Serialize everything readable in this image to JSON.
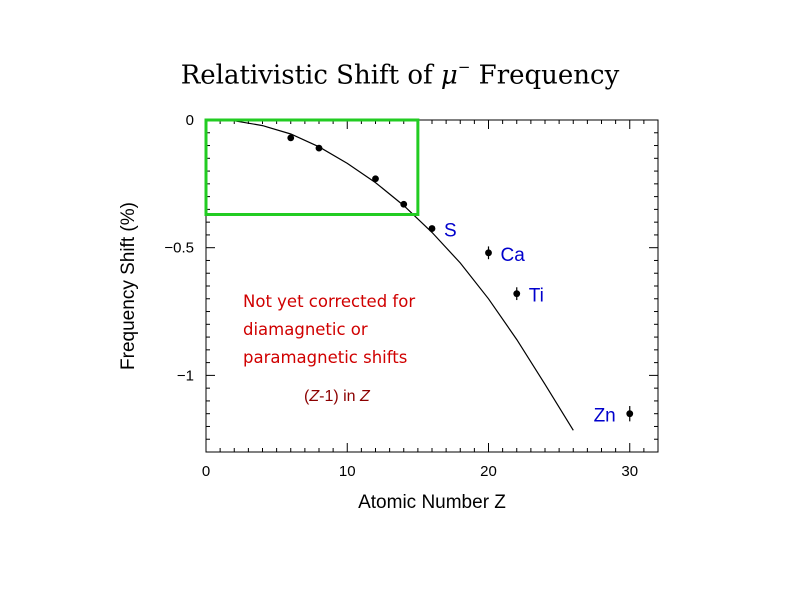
{
  "title": {
    "prefix": "Relativistic Shift of ",
    "symbol": "μ",
    "superscript": "−",
    "suffix": " Frequency"
  },
  "annotations": {
    "note_lines": [
      "Not yet corrected for",
      "diamagnetic or",
      "paramagnetic shifts"
    ],
    "z_note_prefix": "(",
    "z_note_z1": "Z",
    "z_note_mid": "-1) in ",
    "z_note_z2": "Z"
  },
  "colors": {
    "highlight_box": "#22cc22",
    "element_label": "#0000cc",
    "note": "#d00000",
    "z_note": "#8b0000"
  },
  "chart_data": {
    "type": "scatter",
    "xlabel": "Atomic Number Z",
    "ylabel": "Frequency Shift (%)",
    "xlim": [
      0,
      32
    ],
    "ylim": [
      -1.3,
      0
    ],
    "xticks": [
      0,
      10,
      20,
      30
    ],
    "xtick_labels": [
      "0",
      "10",
      "20",
      "30"
    ],
    "yticks": [
      0,
      -0.5,
      -1
    ],
    "ytick_labels": [
      "0",
      "−0.5",
      "−1"
    ],
    "grid": false,
    "points": [
      {
        "x": 6,
        "y": -0.07,
        "err": 0,
        "label": ""
      },
      {
        "x": 8,
        "y": -0.11,
        "err": 0,
        "label": ""
      },
      {
        "x": 12,
        "y": -0.23,
        "err": 0,
        "label": ""
      },
      {
        "x": 14,
        "y": -0.33,
        "err": 0,
        "label": ""
      },
      {
        "x": 16,
        "y": -0.425,
        "err": 0,
        "label": "S"
      },
      {
        "x": 20,
        "y": -0.52,
        "err": 0.025,
        "label": "Ca"
      },
      {
        "x": 22,
        "y": -0.68,
        "err": 0.025,
        "label": "Ti"
      },
      {
        "x": 30,
        "y": -1.15,
        "err": 0.03,
        "label": "Zn"
      }
    ],
    "curve": {
      "x": [
        0,
        2,
        4,
        6,
        8,
        10,
        12,
        14,
        16,
        18,
        20,
        22,
        24,
        26
      ],
      "y": [
        0,
        -0.003,
        -0.022,
        -0.055,
        -0.105,
        -0.17,
        -0.245,
        -0.335,
        -0.44,
        -0.56,
        -0.7,
        -0.86,
        -1.035,
        -1.215
      ]
    },
    "highlight_region": {
      "x": [
        0,
        15
      ],
      "y": [
        -0.37,
        0
      ]
    }
  }
}
